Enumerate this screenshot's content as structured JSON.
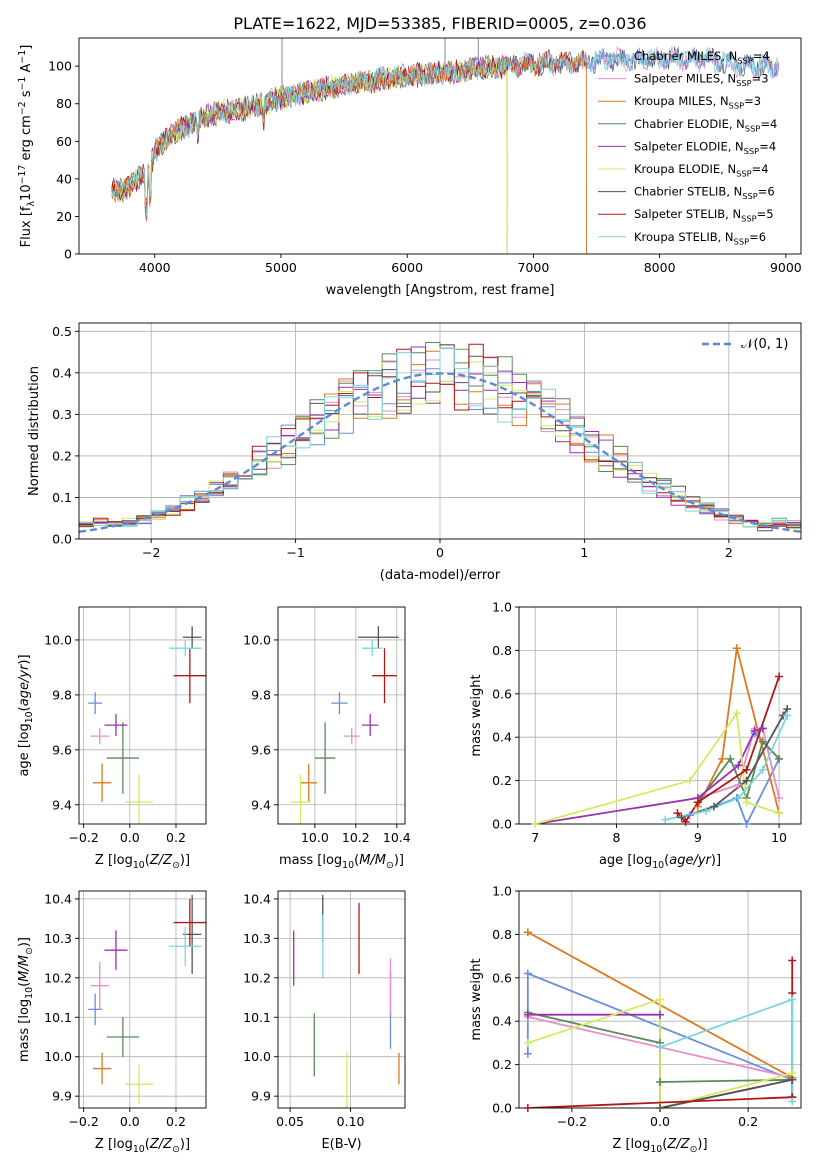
{
  "figure_title": "PLATE=1622, MJD=53385, FIBERID=0005, z=0.036",
  "series_colors": [
    "#6a8fdc",
    "#e58ec8",
    "#dc7a1f",
    "#5a8a5a",
    "#9b2fb0",
    "#d4ea60",
    "#555555",
    "#b01818",
    "#7ad6dc"
  ],
  "chart_data": [
    {
      "id": "spectrum",
      "type": "line",
      "xlabel": "wavelength [Angstrom, rest frame]",
      "ylabel": "Flux [f_λ10^-17 erg cm^-2 s^-1 A^-1]",
      "xlim": [
        3400,
        9120
      ],
      "ylim": [
        0,
        115
      ],
      "xticks": [
        4000,
        5000,
        6000,
        7000,
        8000,
        9000
      ],
      "yticks": [
        0,
        20,
        40,
        60,
        80,
        100
      ],
      "grid": false,
      "legend_position": "right",
      "continuum": [
        [
          3650,
          35
        ],
        [
          3750,
          33
        ],
        [
          3850,
          40
        ],
        [
          3950,
          42
        ],
        [
          4000,
          55
        ],
        [
          4100,
          62
        ],
        [
          4250,
          68
        ],
        [
          4400,
          73
        ],
        [
          4550,
          76
        ],
        [
          4700,
          77
        ],
        [
          4860,
          80
        ],
        [
          5000,
          83
        ],
        [
          5200,
          86
        ],
        [
          5400,
          89
        ],
        [
          5600,
          91
        ],
        [
          5800,
          93
        ],
        [
          6000,
          95
        ],
        [
          6200,
          96
        ],
        [
          6400,
          97
        ],
        [
          6600,
          99
        ],
        [
          6800,
          100
        ],
        [
          7000,
          101
        ],
        [
          7200,
          102
        ],
        [
          7400,
          102
        ],
        [
          7600,
          104
        ],
        [
          7800,
          103
        ],
        [
          8000,
          104
        ],
        [
          8200,
          104
        ],
        [
          8400,
          103
        ],
        [
          8600,
          101
        ],
        [
          8800,
          100
        ]
      ],
      "series": [
        {
          "name": "Chabrier MILES",
          "nssp": "4",
          "xmax": 8950
        },
        {
          "name": "Salpeter MILES",
          "nssp": "3",
          "xmax": 8950
        },
        {
          "name": "Kroupa MILES",
          "nssp": "3",
          "xmax": 7420
        },
        {
          "name": "Chabrier ELODIE",
          "nssp": "4",
          "xmax": 6790
        },
        {
          "name": "Salpeter ELODIE",
          "nssp": "4",
          "xmax": 6790
        },
        {
          "name": "Kroupa ELODIE",
          "nssp": "4",
          "xmax": 6790
        },
        {
          "name": "Chabrier STELIB",
          "nssp": "6",
          "xmax": 8950
        },
        {
          "name": "Salpeter STELIB",
          "nssp": "5",
          "xmax": 7420
        },
        {
          "name": "Kroupa STELIB",
          "nssp": "6",
          "xmax": 8950
        }
      ]
    },
    {
      "id": "residuals",
      "type": "histogram",
      "xlabel": "(data-model)/error",
      "ylabel": "Normed distribution",
      "xlim": [
        -2.5,
        2.5
      ],
      "ylim": [
        0,
        0.52
      ],
      "xticks": [
        -2,
        -1,
        0,
        1,
        2
      ],
      "xtick_labels": [
        "−2",
        "−1",
        "0",
        "1",
        "2"
      ],
      "yticks": [
        0.0,
        0.1,
        0.2,
        0.3,
        0.4,
        0.5
      ],
      "ytick_labels": [
        "0.0",
        "0.1",
        "0.2",
        "0.3",
        "0.4",
        "0.5"
      ],
      "grid": true,
      "legend_label": "𝒩(0, 1)",
      "legend_position": "top-right",
      "bin_width": 0.1
    },
    {
      "id": "age_vs_Z",
      "type": "errorbar",
      "xlabel": "Z [log10(Z/Z⊙)]",
      "ylabel": "age  [log10(age/yr)]",
      "xlim": [
        -0.22,
        0.33
      ],
      "ylim": [
        9.33,
        10.12
      ],
      "xticks": [
        -0.2,
        0.0,
        0.2
      ],
      "xtick_labels": [
        "−0.2",
        "0.0",
        "0.2"
      ],
      "yticks": [
        9.4,
        9.6,
        9.8,
        10.0
      ],
      "ytick_labels": [
        "9.4",
        "9.6",
        "9.8",
        "10.0"
      ],
      "grid": true,
      "points": [
        {
          "x": -0.15,
          "xerr": 0.03,
          "y": 9.77,
          "yerr": 0.04
        },
        {
          "x": -0.13,
          "xerr": 0.04,
          "y": 9.65,
          "yerr": 0.03
        },
        {
          "x": -0.12,
          "xerr": 0.04,
          "y": 9.48,
          "yerr": 0.07
        },
        {
          "x": -0.03,
          "xerr": 0.07,
          "y": 9.57,
          "yerr": 0.13
        },
        {
          "x": -0.06,
          "xerr": 0.05,
          "y": 9.69,
          "yerr": 0.04
        },
        {
          "x": 0.04,
          "xerr": 0.06,
          "y": 9.41,
          "yerr": 0.1
        },
        {
          "x": 0.27,
          "xerr": 0.04,
          "y": 10.01,
          "yerr": 0.04
        },
        {
          "x": 0.26,
          "xerr": 0.07,
          "y": 9.87,
          "yerr": 0.1
        },
        {
          "x": 0.24,
          "xerr": 0.07,
          "y": 9.97,
          "yerr": 0.03
        }
      ]
    },
    {
      "id": "age_vs_mass",
      "type": "errorbar",
      "xlabel": "mass [log10(M/M⊙)]",
      "ylabel": "",
      "xlim": [
        9.82,
        10.44
      ],
      "ylim": [
        9.33,
        10.12
      ],
      "xticks": [
        10.0,
        10.2,
        10.4
      ],
      "xtick_labels": [
        "10.0",
        "10.2",
        "10.4"
      ],
      "yticks": [
        9.4,
        9.6,
        9.8,
        10.0
      ],
      "ytick_labels": [
        "9.4",
        "9.6",
        "9.8",
        "10.0"
      ],
      "grid": true,
      "points": [
        {
          "x": 10.12,
          "xerr": 0.04,
          "y": 9.77,
          "yerr": 0.04
        },
        {
          "x": 10.18,
          "xerr": 0.04,
          "y": 9.65,
          "yerr": 0.03
        },
        {
          "x": 9.97,
          "xerr": 0.04,
          "y": 9.48,
          "yerr": 0.07
        },
        {
          "x": 10.05,
          "xerr": 0.05,
          "y": 9.57,
          "yerr": 0.13
        },
        {
          "x": 10.27,
          "xerr": 0.04,
          "y": 9.69,
          "yerr": 0.04
        },
        {
          "x": 9.93,
          "xerr": 0.05,
          "y": 9.41,
          "yerr": 0.1
        },
        {
          "x": 10.31,
          "xerr": 0.1,
          "y": 10.01,
          "yerr": 0.04
        },
        {
          "x": 10.34,
          "xerr": 0.06,
          "y": 9.87,
          "yerr": 0.1
        },
        {
          "x": 10.28,
          "xerr": 0.05,
          "y": 9.97,
          "yerr": 0.03
        }
      ]
    },
    {
      "id": "weight_vs_age",
      "type": "line",
      "xlabel": "age  [log10(age/yr)]",
      "ylabel": "mass weight",
      "xlim": [
        6.8,
        10.27
      ],
      "ylim": [
        0,
        1.0
      ],
      "xticks": [
        7,
        8,
        9,
        10
      ],
      "xtick_labels": [
        "7",
        "8",
        "9",
        "10"
      ],
      "yticks": [
        0.0,
        0.2,
        0.4,
        0.6,
        0.8,
        1.0
      ],
      "ytick_labels": [
        "0.0",
        "0.2",
        "0.4",
        "0.6",
        "0.8",
        "1.0"
      ],
      "grid": true,
      "series": [
        {
          "points": [
            [
              8.9,
              0.04
            ],
            [
              9.48,
              0.12
            ],
            [
              9.6,
              0.0
            ],
            [
              10.0,
              0.3
            ],
            [
              9.7,
              0.42
            ]
          ]
        },
        {
          "points": [
            [
              9.0,
              0.12
            ],
            [
              9.5,
              0.18
            ],
            [
              9.7,
              0.44
            ],
            [
              9.8,
              0.44
            ],
            [
              10.0,
              0.12
            ]
          ]
        },
        {
          "points": [
            [
              9.0,
              0.08
            ],
            [
              9.3,
              0.3
            ],
            [
              9.48,
              0.81
            ],
            [
              10.0,
              0.05
            ]
          ]
        },
        {
          "points": [
            [
              9.0,
              0.1
            ],
            [
              9.4,
              0.3
            ],
            [
              9.6,
              0.12
            ],
            [
              9.8,
              0.38
            ],
            [
              10.0,
              0.3
            ]
          ]
        },
        {
          "points": [
            [
              7.0,
              0.0
            ],
            [
              9.0,
              0.12
            ],
            [
              9.5,
              0.27
            ],
            [
              9.7,
              0.43
            ],
            [
              9.8,
              0.44
            ]
          ]
        },
        {
          "points": [
            [
              7.0,
              0.0
            ],
            [
              8.9,
              0.2
            ],
            [
              9.48,
              0.51
            ],
            [
              9.6,
              0.1
            ],
            [
              10.0,
              0.05
            ]
          ]
        },
        {
          "points": [
            [
              8.8,
              0.03
            ],
            [
              9.2,
              0.08
            ],
            [
              9.6,
              0.2
            ],
            [
              10.05,
              0.5
            ],
            [
              10.1,
              0.53
            ]
          ]
        },
        {
          "points": [
            [
              8.75,
              0.05
            ],
            [
              8.85,
              0.01
            ],
            [
              9.0,
              0.1
            ],
            [
              9.6,
              0.25
            ],
            [
              10.0,
              0.68
            ]
          ]
        },
        {
          "points": [
            [
              8.6,
              0.02
            ],
            [
              9.1,
              0.06
            ],
            [
              9.5,
              0.12
            ],
            [
              9.8,
              0.25
            ],
            [
              10.1,
              0.5
            ]
          ]
        }
      ]
    },
    {
      "id": "mass_vs_Z",
      "type": "errorbar",
      "xlabel": "Z [log10(Z/Z⊙)]",
      "ylabel": "mass [log10(M/M⊙)]",
      "xlim": [
        -0.22,
        0.33
      ],
      "ylim": [
        9.87,
        10.42
      ],
      "xticks": [
        -0.2,
        0.0,
        0.2
      ],
      "xtick_labels": [
        "−0.2",
        "0.0",
        "0.2"
      ],
      "yticks": [
        9.9,
        10.0,
        10.1,
        10.2,
        10.3,
        10.4
      ],
      "ytick_labels": [
        "9.9",
        "10.0",
        "10.1",
        "10.2",
        "10.3",
        "10.4"
      ],
      "grid": true,
      "points": [
        {
          "x": -0.15,
          "xerr": 0.03,
          "y": 10.12,
          "yerr": 0.04
        },
        {
          "x": -0.13,
          "xerr": 0.04,
          "y": 10.18,
          "yerr": 0.06
        },
        {
          "x": -0.12,
          "xerr": 0.04,
          "y": 9.97,
          "yerr": 0.04
        },
        {
          "x": -0.03,
          "xerr": 0.07,
          "y": 10.05,
          "yerr": 0.05
        },
        {
          "x": -0.06,
          "xerr": 0.05,
          "y": 10.27,
          "yerr": 0.05
        },
        {
          "x": 0.04,
          "xerr": 0.06,
          "y": 9.93,
          "yerr": 0.05
        },
        {
          "x": 0.27,
          "xerr": 0.04,
          "y": 10.31,
          "yerr": 0.1
        },
        {
          "x": 0.26,
          "xerr": 0.07,
          "y": 10.34,
          "yerr": 0.06
        },
        {
          "x": 0.24,
          "xerr": 0.07,
          "y": 10.28,
          "yerr": 0.05
        }
      ]
    },
    {
      "id": "mass_vs_ebv",
      "type": "errorbar",
      "xlabel": "E(B-V)",
      "ylabel": "",
      "xlim": [
        0.04,
        0.145
      ],
      "ylim": [
        9.87,
        10.42
      ],
      "xticks": [
        0.05,
        0.1
      ],
      "xtick_labels": [
        "0.05",
        "0.10"
      ],
      "yticks": [
        9.9,
        10.0,
        10.1,
        10.2,
        10.3,
        10.4
      ],
      "ytick_labels": [
        "9.9",
        "10.0",
        "10.1",
        "10.2",
        "10.3",
        "10.4"
      ],
      "grid": true,
      "points": [
        {
          "x": 0.133,
          "xerr": 0.0,
          "y": 10.12,
          "yerr": 0.1
        },
        {
          "x": 0.133,
          "xerr": 0.0,
          "y": 10.18,
          "yerr": 0.07
        },
        {
          "x": 0.14,
          "xerr": 0.0,
          "y": 9.97,
          "yerr": 0.04
        },
        {
          "x": 0.07,
          "xerr": 0.0,
          "y": 10.03,
          "yerr": 0.08
        },
        {
          "x": 0.053,
          "xerr": 0.0,
          "y": 10.25,
          "yerr": 0.07
        },
        {
          "x": 0.097,
          "xerr": 0.0,
          "y": 9.94,
          "yerr": 0.07
        },
        {
          "x": 0.077,
          "xerr": 0.0,
          "y": 10.35,
          "yerr": 0.06
        },
        {
          "x": 0.107,
          "xerr": 0.0,
          "y": 10.3,
          "yerr": 0.09
        },
        {
          "x": 0.077,
          "xerr": 0.0,
          "y": 10.28,
          "yerr": 0.08
        }
      ]
    },
    {
      "id": "weight_vs_Z",
      "type": "line",
      "xlabel": "Z [log10(Z/Z⊙)]",
      "ylabel": "mass weight",
      "xlim": [
        -0.32,
        0.32
      ],
      "ylim": [
        0,
        1.0
      ],
      "xticks": [
        -0.2,
        0.0,
        0.2
      ],
      "xtick_labels": [
        "−0.2",
        "0.0",
        "0.2"
      ],
      "yticks": [
        0.0,
        0.2,
        0.4,
        0.6,
        0.8,
        1.0
      ],
      "ytick_labels": [
        "0.0",
        "0.2",
        "0.4",
        "0.6",
        "0.8",
        "1.0"
      ],
      "grid": true,
      "series": [
        {
          "points": [
            [
              -0.3,
              0.25
            ],
            [
              -0.3,
              0.62
            ],
            [
              0.3,
              0.13
            ]
          ]
        },
        {
          "points": [
            [
              -0.3,
              0.42
            ],
            [
              0.3,
              0.14
            ]
          ]
        },
        {
          "points": [
            [
              -0.3,
              0.81
            ],
            [
              0.3,
              0.14
            ]
          ]
        },
        {
          "points": [
            [
              -0.3,
              0.44
            ],
            [
              0.0,
              0.3
            ],
            [
              0.0,
              0.12
            ],
            [
              0.3,
              0.13
            ]
          ]
        },
        {
          "points": [
            [
              -0.3,
              0.43
            ],
            [
              0.0,
              0.43
            ],
            [
              0.0,
              0.0
            ],
            [
              0.3,
              0.13
            ]
          ]
        },
        {
          "points": [
            [
              -0.3,
              0.3
            ],
            [
              0.0,
              0.5
            ],
            [
              0.0,
              0.0
            ],
            [
              0.3,
              0.16
            ]
          ]
        },
        {
          "points": [
            [
              0.0,
              0.0
            ],
            [
              0.3,
              0.13
            ],
            [
              0.3,
              0.05
            ]
          ]
        },
        {
          "points": [
            [
              -0.3,
              0.0
            ],
            [
              0.3,
              0.05
            ],
            [
              0.3,
              0.53
            ],
            [
              0.3,
              0.68
            ]
          ]
        },
        {
          "points": [
            [
              0.0,
              0.28
            ],
            [
              0.3,
              0.5
            ],
            [
              0.3,
              0.03
            ]
          ]
        }
      ]
    }
  ]
}
